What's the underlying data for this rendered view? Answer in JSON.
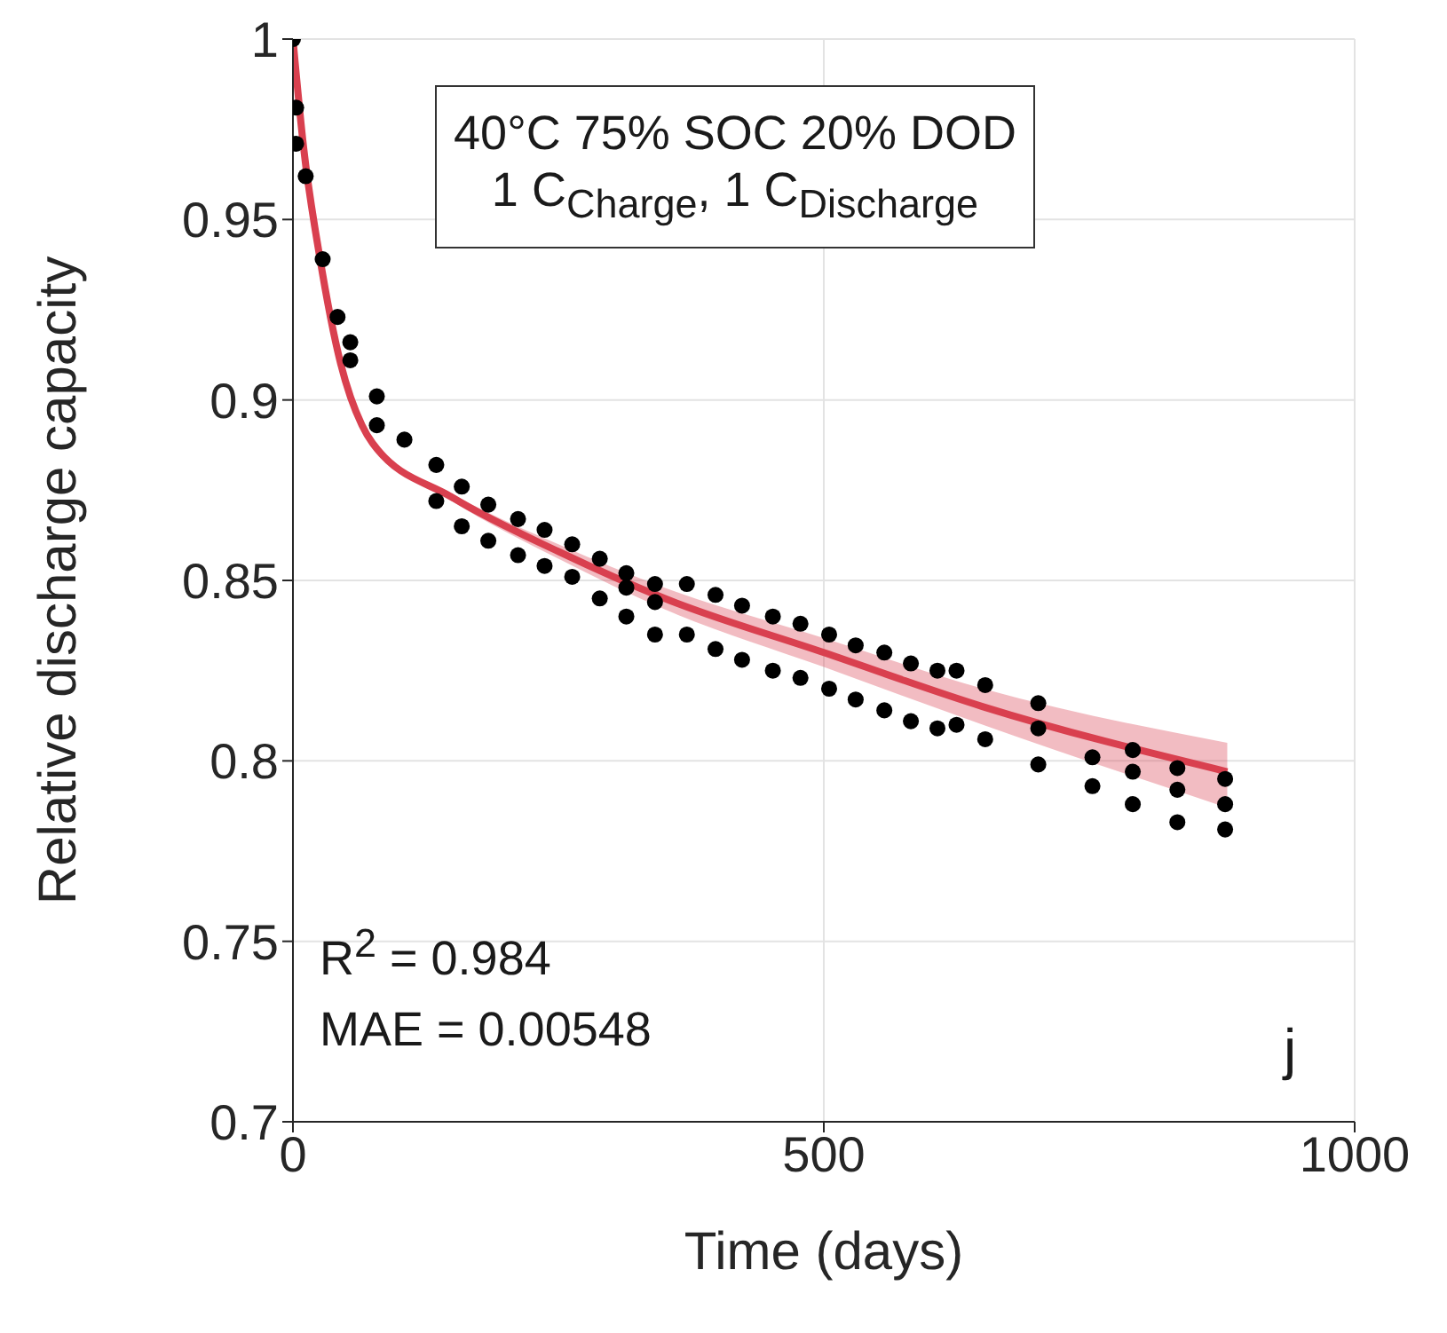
{
  "chart_data": {
    "type": "scatter",
    "xlabel": "Time (days)",
    "ylabel": "Relative discharge capacity",
    "xlim": [
      0,
      1000
    ],
    "xticks": [
      0,
      500,
      1000
    ],
    "ylim": [
      0.7,
      1
    ],
    "yticks": [
      0.7,
      0.75,
      0.8,
      0.85,
      0.9,
      0.95,
      1
    ],
    "grid": true,
    "annotations": [
      "40°C 75% SOC 20% DOD",
      "1 C$_{Charge}$, 1 C$_{Discharge}$",
      "R$^{2}$ = 0.984",
      "MAE = 0.00548",
      "j"
    ],
    "series": [
      {
        "color": "#000000",
        "marker": "circle",
        "x": [
          0,
          3,
          3,
          12,
          28,
          42,
          54,
          54,
          79,
          79,
          105,
          135,
          135,
          159,
          159,
          184,
          184,
          212,
          212,
          237,
          237,
          263,
          263,
          289,
          289,
          314,
          314,
          314,
          341,
          341,
          341,
          371,
          371,
          398,
          398,
          423,
          423,
          452,
          452,
          478,
          478,
          505,
          505,
          530,
          530,
          557,
          557,
          582,
          582,
          607,
          607,
          625,
          625,
          652,
          652,
          702,
          702,
          702,
          753,
          753,
          791,
          791,
          791,
          833,
          833,
          833,
          878,
          878,
          878
        ],
        "values": [
          1,
          0.981,
          0.971,
          0.962,
          0.939,
          0.923,
          0.916,
          0.911,
          0.901,
          0.893,
          0.889,
          0.882,
          0.872,
          0.876,
          0.865,
          0.871,
          0.861,
          0.867,
          0.857,
          0.864,
          0.854,
          0.86,
          0.851,
          0.856,
          0.845,
          0.852,
          0.848,
          0.84,
          0.849,
          0.844,
          0.835,
          0.849,
          0.835,
          0.846,
          0.831,
          0.843,
          0.828,
          0.84,
          0.825,
          0.838,
          0.823,
          0.835,
          0.82,
          0.832,
          0.817,
          0.83,
          0.814,
          0.827,
          0.811,
          0.825,
          0.809,
          0.825,
          0.81,
          0.821,
          0.806,
          0.816,
          0.809,
          0.799,
          0.801,
          0.793,
          0.803,
          0.797,
          0.788,
          0.798,
          0.792,
          0.783,
          0.795,
          0.788,
          0.781
        ]
      },
      {
        "type": "line",
        "color": "#d9404f",
        "marker": "none",
        "x": [
          0,
          10,
          25,
          45,
          65,
          75,
          150,
          250,
          350,
          500,
          650,
          880
        ],
        "values": [
          1,
          0.97,
          0.94,
          0.91,
          0.893,
          0.888,
          0.873,
          0.858,
          0.845,
          0.83,
          0.815,
          0.797
        ],
        "lower": [
          1,
          0.97,
          0.94,
          0.91,
          0.893,
          0.888,
          0.872,
          0.856,
          0.842,
          0.826,
          0.81,
          0.787
        ],
        "upper": [
          1,
          0.97,
          0.94,
          0.91,
          0.893,
          0.888,
          0.874,
          0.86,
          0.848,
          0.834,
          0.82,
          0.805
        ]
      }
    ]
  }
}
